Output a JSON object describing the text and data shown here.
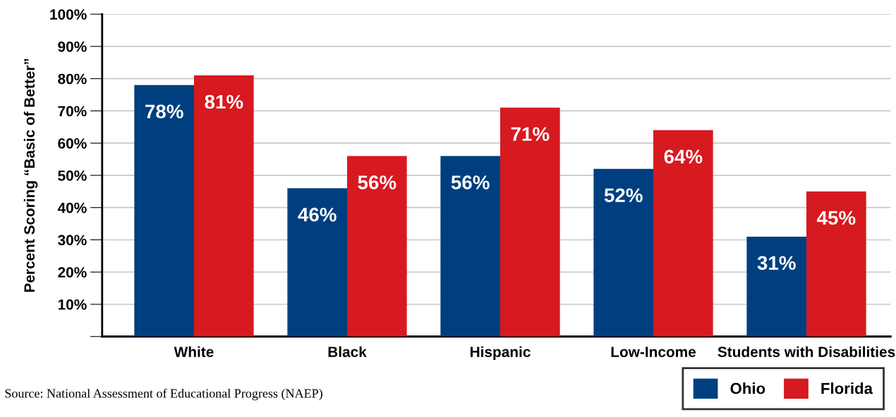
{
  "chart_data": {
    "type": "bar",
    "ylabel": "Percent Scoring “Basic of Better”",
    "categories": [
      "White",
      "Black",
      "Hispanic",
      "Low-Income",
      "Students with Disabilities"
    ],
    "series": [
      {
        "name": "Ohio",
        "color": "#003f7f",
        "values": [
          78,
          46,
          56,
          52,
          31
        ]
      },
      {
        "name": "Florida",
        "color": "#d71920",
        "values": [
          81,
          56,
          71,
          64,
          45
        ]
      }
    ],
    "ylim": [
      0,
      100
    ],
    "yticks": [
      {
        "value": 0,
        "label": null
      },
      {
        "value": 10,
        "label": "10%"
      },
      {
        "value": 20,
        "label": "20%"
      },
      {
        "value": 30,
        "label": "30%"
      },
      {
        "value": 40,
        "label": "40%"
      },
      {
        "value": 50,
        "label": "50%"
      },
      {
        "value": 60,
        "label": "60%"
      },
      {
        "value": 70,
        "label": "70%"
      },
      {
        "value": 80,
        "label": "80%"
      },
      {
        "value": 90,
        "label": "90%"
      },
      {
        "value": 100,
        "label": "100%"
      }
    ],
    "value_labels": [
      [
        "78%",
        "46%",
        "56%",
        "52%",
        "31%"
      ],
      [
        "81%",
        "56%",
        "71%",
        "64%",
        "45%"
      ]
    ],
    "grid": "y",
    "legend": "bottom right",
    "annotations": [
      "Source: National Assessment of Educational Progress (NAEP)"
    ]
  }
}
